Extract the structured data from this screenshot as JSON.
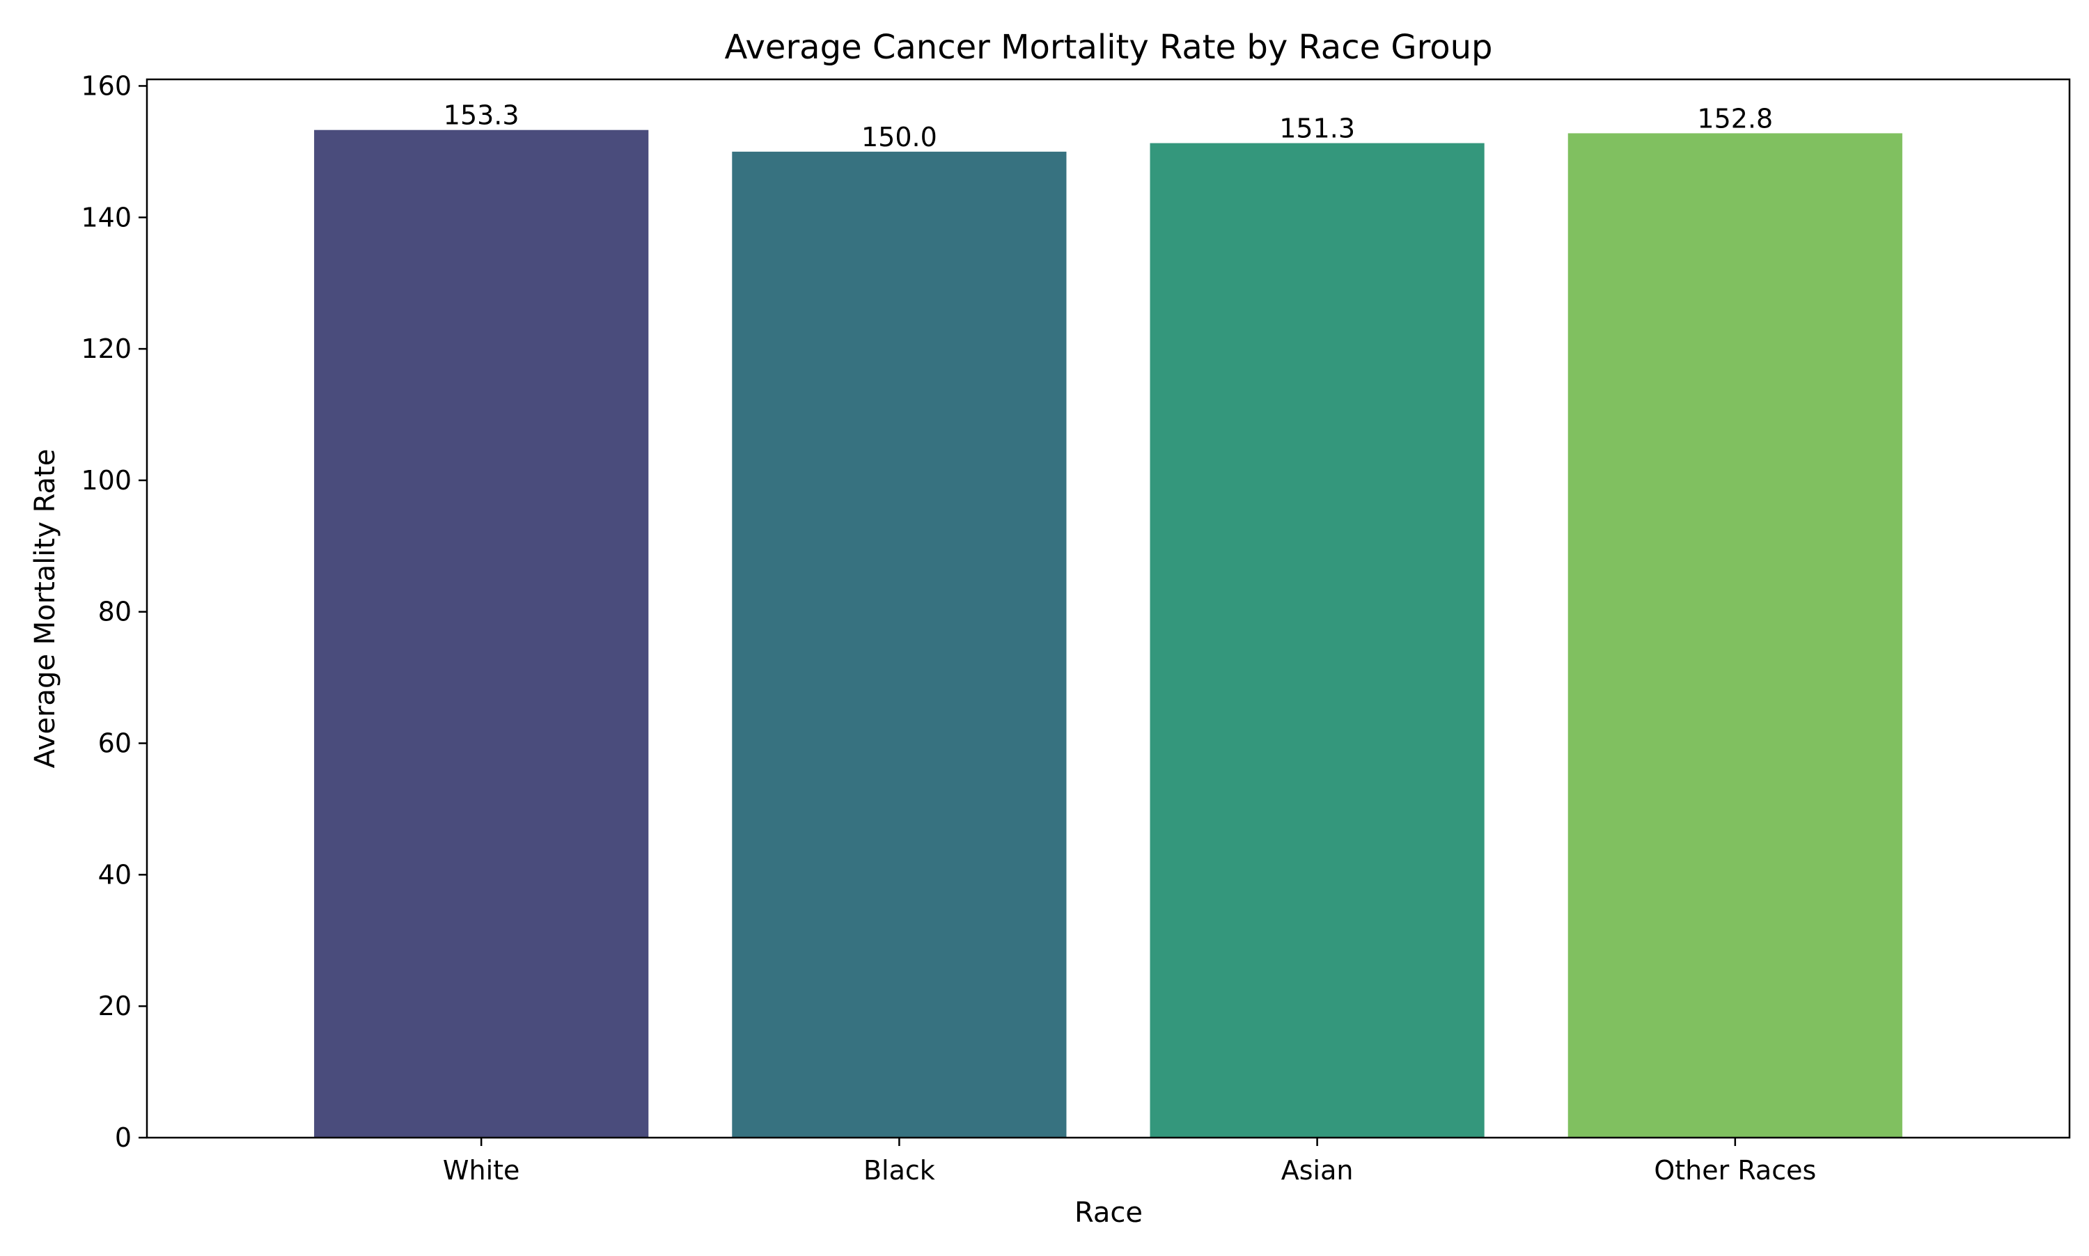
{
  "chart_data": {
    "type": "bar",
    "title": "Average Cancer Mortality Rate by Race Group",
    "xlabel": "Race",
    "ylabel": "Average Mortality Rate",
    "categories": [
      "White",
      "Black",
      "Asian",
      "Other Races"
    ],
    "values": [
      153.3,
      150.0,
      151.3,
      152.8
    ],
    "value_labels": [
      "153.3",
      "150.0",
      "151.3",
      "152.8"
    ],
    "colors": [
      "#4a4c7c",
      "#377280",
      "#34977c",
      "#80c060"
    ],
    "ylim": [
      0,
      161
    ],
    "yticks": [
      0,
      20,
      40,
      60,
      80,
      100,
      120,
      140,
      160
    ],
    "grid": false,
    "legend": "none"
  }
}
